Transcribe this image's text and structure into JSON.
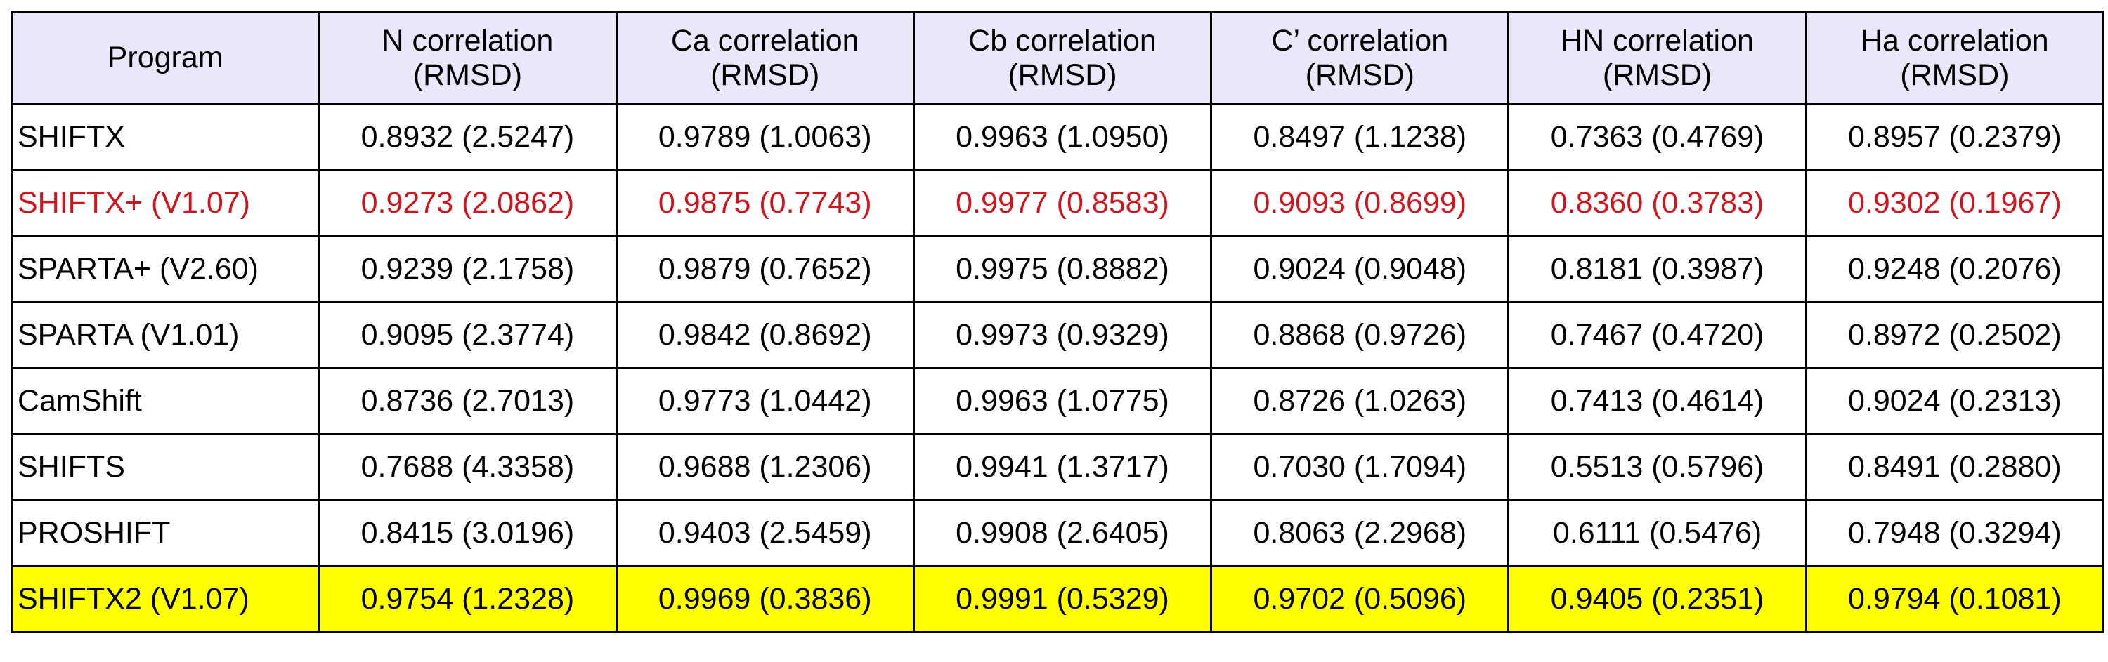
{
  "table": {
    "headers": [
      {
        "line1": "Program",
        "line2": ""
      },
      {
        "line1": "N correlation",
        "line2": "(RMSD)"
      },
      {
        "line1": "Ca correlation",
        "line2": "(RMSD)"
      },
      {
        "line1": "Cb correlation",
        "line2": "(RMSD)"
      },
      {
        "line1": "C’ correlation",
        "line2": "(RMSD)"
      },
      {
        "line1": "HN correlation",
        "line2": "(RMSD)"
      },
      {
        "line1": "Ha correlation",
        "line2": "(RMSD)"
      }
    ],
    "rows": [
      {
        "program": "SHIFTX",
        "highlight": "none",
        "values": [
          "0.8932 (2.5247)",
          "0.9789 (1.0063)",
          "0.9963 (1.0950)",
          "0.8497 (1.1238)",
          "0.7363 (0.4769)",
          "0.8957 (0.2379)"
        ]
      },
      {
        "program": "SHIFTX+ (V1.07)",
        "highlight": "red-text",
        "values": [
          "0.9273 (2.0862)",
          "0.9875 (0.7743)",
          "0.9977 (0.8583)",
          "0.9093 (0.8699)",
          "0.8360 (0.3783)",
          "0.9302 (0.1967)"
        ]
      },
      {
        "program": "SPARTA+ (V2.60)",
        "highlight": "none",
        "values": [
          "0.9239 (2.1758)",
          "0.9879 (0.7652)",
          "0.9975 (0.8882)",
          "0.9024 (0.9048)",
          "0.8181 (0.3987)",
          "0.9248 (0.2076)"
        ]
      },
      {
        "program": "SPARTA (V1.01)",
        "highlight": "none",
        "values": [
          "0.9095 (2.3774)",
          "0.9842 (0.8692)",
          "0.9973 (0.9329)",
          "0.8868 (0.9726)",
          "0.7467 (0.4720)",
          "0.8972 (0.2502)"
        ]
      },
      {
        "program": "CamShift",
        "highlight": "none",
        "values": [
          "0.8736 (2.7013)",
          "0.9773 (1.0442)",
          "0.9963 (1.0775)",
          "0.8726 (1.0263)",
          "0.7413 (0.4614)",
          "0.9024 (0.2313)"
        ]
      },
      {
        "program": "SHIFTS",
        "highlight": "none",
        "values": [
          "0.7688 (4.3358)",
          "0.9688 (1.2306)",
          "0.9941 (1.3717)",
          "0.7030 (1.7094)",
          "0.5513 (0.5796)",
          "0.8491 (0.2880)"
        ]
      },
      {
        "program": "PROSHIFT",
        "highlight": "none",
        "values": [
          "0.8415 (3.0196)",
          "0.9403 (2.5459)",
          "0.9908 (2.6405)",
          "0.8063 (2.2968)",
          "0.6111 (0.5476)",
          "0.7948 (0.3294)"
        ]
      },
      {
        "program": "SHIFTX2 (V1.07)",
        "highlight": "yellow-background",
        "values": [
          "0.9754 (1.2328)",
          "0.9969 (0.3836)",
          "0.9991 (0.5329)",
          "0.9702 (0.5096)",
          "0.9405 (0.2351)",
          "0.9794 (0.1081)"
        ]
      }
    ]
  },
  "colors": {
    "header_background": "#e8e8fa",
    "highlight_red_text": "#d0141e",
    "highlight_yellow_background": "#ffff00",
    "border": "#000000"
  }
}
